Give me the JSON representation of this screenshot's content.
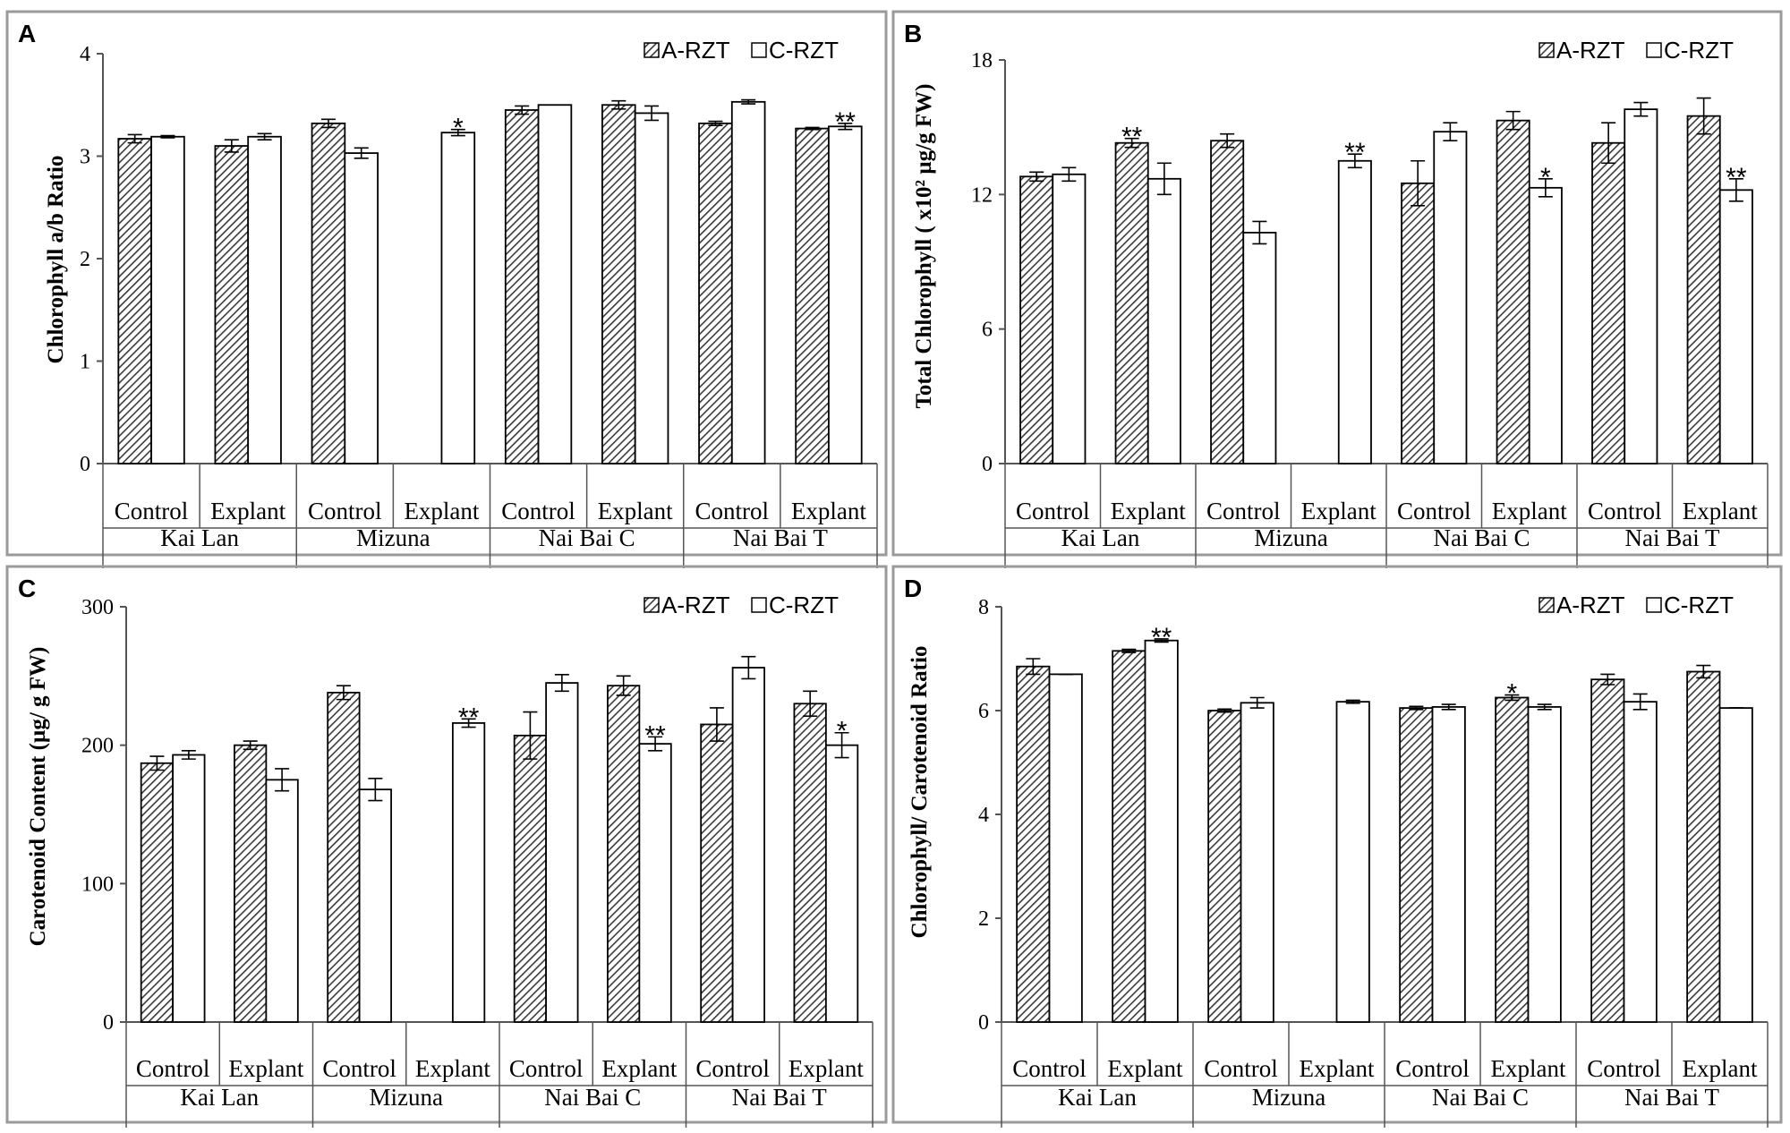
{
  "legend": {
    "a_label": "A-RZT",
    "c_label": "C-RZT"
  },
  "chart_data": [
    {
      "panel": "A",
      "type": "bar",
      "ylabel": "Chlorophyll a/b Ratio",
      "ylim": [
        0,
        4
      ],
      "yticks": [
        "0",
        "1",
        "2",
        "3",
        "4"
      ],
      "groups": [
        "Kai Lan",
        "Mizuna",
        "Nai Bai C",
        "Nai Bai T"
      ],
      "subcategories": [
        "Control",
        "Explant"
      ],
      "series": [
        {
          "name": "A-RZT",
          "values": [
            3.17,
            3.1,
            3.32,
            null,
            3.45,
            3.5,
            3.32,
            3.27
          ],
          "errors": [
            0.04,
            0.06,
            0.04,
            null,
            0.04,
            0.04,
            0.02,
            0.01
          ]
        },
        {
          "name": "C-RZT",
          "values": [
            3.19,
            3.19,
            3.03,
            3.23,
            3.5,
            3.42,
            3.53,
            3.29
          ],
          "errors": [
            0.01,
            0.03,
            0.05,
            0.03,
            0.0,
            0.07,
            0.02,
            0.03
          ]
        }
      ],
      "annotations": [
        {
          "bar": 3,
          "series": 1,
          "text": "*"
        },
        {
          "bar": 7,
          "series": 1,
          "text": "**"
        }
      ]
    },
    {
      "panel": "B",
      "type": "bar",
      "ylabel": "Total Chlorophyll ( x10² µg/g FW)",
      "ylim": [
        0,
        18
      ],
      "yticks": [
        "0",
        "6",
        "12",
        "18"
      ],
      "groups": [
        "Kai Lan",
        "Mizuna",
        "Nai Bai C",
        "Nai Bai T"
      ],
      "subcategories": [
        "Control",
        "Explant"
      ],
      "series": [
        {
          "name": "A-RZT",
          "values": [
            12.8,
            14.3,
            14.4,
            null,
            12.5,
            15.3,
            14.3,
            15.5
          ],
          "errors": [
            0.2,
            0.2,
            0.3,
            null,
            1.0,
            0.4,
            0.9,
            0.8
          ]
        },
        {
          "name": "C-RZT",
          "values": [
            12.9,
            12.7,
            10.3,
            13.5,
            14.8,
            12.3,
            15.8,
            12.2
          ],
          "errors": [
            0.3,
            0.7,
            0.5,
            0.3,
            0.4,
            0.4,
            0.3,
            0.5
          ]
        }
      ],
      "annotations": [
        {
          "bar": 1,
          "series": 0,
          "text": "**"
        },
        {
          "bar": 3,
          "series": 1,
          "text": "**"
        },
        {
          "bar": 5,
          "series": 1,
          "text": "*"
        },
        {
          "bar": 7,
          "series": 1,
          "text": "**"
        }
      ]
    },
    {
      "panel": "C",
      "type": "bar",
      "ylabel": "Carotenoid Content (µg/ g FW)",
      "ylim": [
        0,
        300
      ],
      "yticks": [
        "0",
        "100",
        "200",
        "300"
      ],
      "groups": [
        "Kai Lan",
        "Mizuna",
        "Nai Bai C",
        "Nai Bai T"
      ],
      "subcategories": [
        "Control",
        "Explant"
      ],
      "series": [
        {
          "name": "A-RZT",
          "values": [
            187,
            200,
            238,
            null,
            207,
            243,
            215,
            230
          ],
          "errors": [
            5,
            3,
            5,
            null,
            17,
            7,
            12,
            9
          ]
        },
        {
          "name": "C-RZT",
          "values": [
            193,
            175,
            168,
            216,
            245,
            201,
            256,
            200
          ],
          "errors": [
            3,
            8,
            8,
            3,
            6,
            5,
            8,
            9
          ]
        }
      ],
      "annotations": [
        {
          "bar": 3,
          "series": 1,
          "text": "**"
        },
        {
          "bar": 5,
          "series": 1,
          "text": "**"
        },
        {
          "bar": 7,
          "series": 1,
          "text": "*"
        }
      ]
    },
    {
      "panel": "D",
      "type": "bar",
      "ylabel": "Chlorophyll/ Carotenoid Ratio",
      "ylim": [
        0,
        8
      ],
      "yticks": [
        "0",
        "2",
        "4",
        "6",
        "8"
      ],
      "groups": [
        "Kai Lan",
        "Mizuna",
        "Nai Bai C",
        "Nai Bai T"
      ],
      "subcategories": [
        "Control",
        "Explant"
      ],
      "series": [
        {
          "name": "A-RZT",
          "values": [
            6.85,
            7.15,
            6.0,
            null,
            6.05,
            6.25,
            6.6,
            6.75
          ],
          "errors": [
            0.15,
            0.03,
            0.03,
            null,
            0.03,
            0.05,
            0.1,
            0.12
          ]
        },
        {
          "name": "C-RZT",
          "values": [
            6.7,
            7.35,
            6.15,
            6.17,
            6.07,
            6.07,
            6.17,
            6.05
          ],
          "errors": [
            0.0,
            0.03,
            0.1,
            0.03,
            0.05,
            0.05,
            0.15,
            0.0
          ]
        }
      ],
      "annotations": [
        {
          "bar": 1,
          "series": 1,
          "text": "**"
        },
        {
          "bar": 5,
          "series": 0,
          "text": "*"
        }
      ]
    }
  ]
}
